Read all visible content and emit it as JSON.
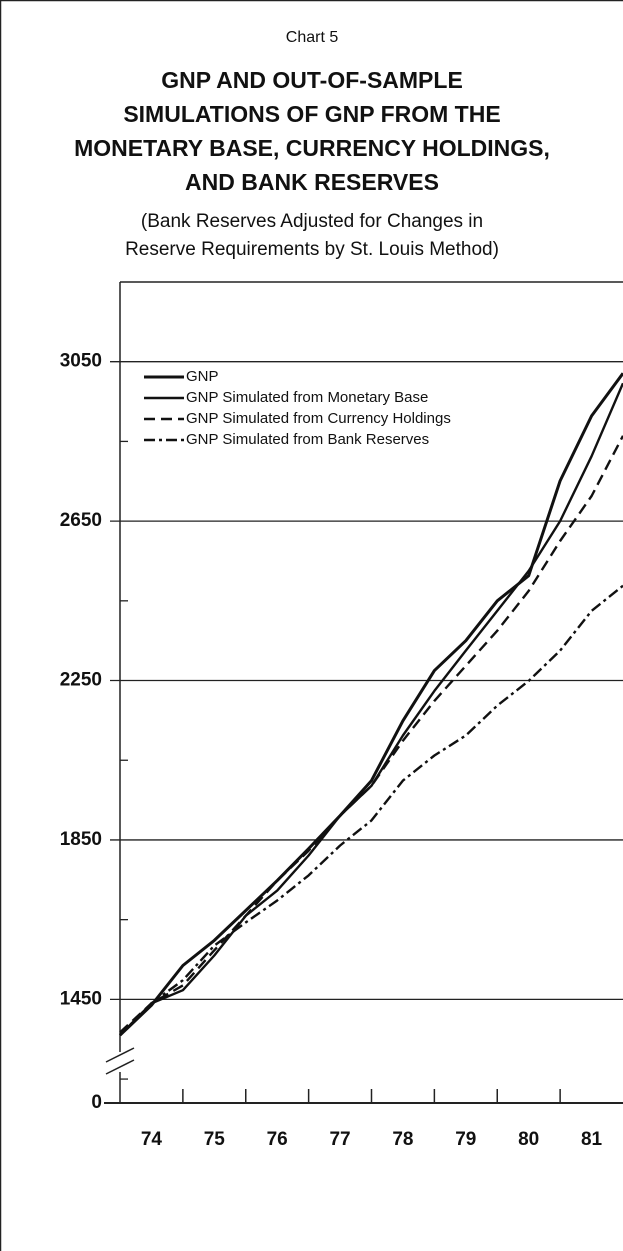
{
  "chart_data": {
    "type": "line",
    "label": "Chart 5",
    "title": [
      "GNP AND OUT-OF-SAMPLE",
      "SIMULATIONS OF GNP FROM THE",
      "MONETARY BASE, CURRENCY HOLDINGS,",
      "AND BANK RESERVES"
    ],
    "subtitle": [
      "(Bank Reserves Adjusted for Changes in",
      "Reserve Requirements by St. Louis Method)"
    ],
    "x": [
      1974.0,
      1974.5,
      1975.0,
      1975.5,
      1976.0,
      1976.5,
      1977.0,
      1977.5,
      1978.0,
      1978.5,
      1979.0,
      1979.5,
      1980.0,
      1980.5,
      1981.0,
      1981.5,
      1982.0
    ],
    "xlim": [
      1974,
      1982
    ],
    "xticks": [
      {
        "value": 1974.5,
        "label": "74"
      },
      {
        "value": 1975.5,
        "label": "75"
      },
      {
        "value": 1976.5,
        "label": "76"
      },
      {
        "value": 1977.5,
        "label": "77"
      },
      {
        "value": 1978.5,
        "label": "78"
      },
      {
        "value": 1979.5,
        "label": "79"
      },
      {
        "value": 1980.5,
        "label": "80"
      },
      {
        "value": 1981.5,
        "label": "81"
      }
    ],
    "minor_xticks": [
      1975,
      1976,
      1977,
      1978,
      1979,
      1980,
      1981
    ],
    "ylim": [
      1200,
      3250
    ],
    "yticks": [
      0,
      1450,
      1850,
      2250,
      2650,
      3050
    ],
    "minor_yticks": [
      1250,
      1650,
      2050,
      2450,
      2850
    ],
    "axis_break": true,
    "grid": true,
    "legend": "upper left",
    "series": [
      {
        "name": "GNP",
        "color": "#111111",
        "style": "solid",
        "values": [
          1360,
          1435,
          1535,
          1598,
          1673,
          1748,
          1828,
          1911,
          1999,
          2149,
          2275,
          2350,
          2450,
          2513,
          2751,
          2914,
          3021
        ]
      },
      {
        "name": "GNP Simulated from Monetary Base",
        "color": "#111111",
        "style": "solid",
        "values": [
          1360,
          1440,
          1473,
          1560,
          1660,
          1723,
          1811,
          1911,
          1986,
          2112,
          2224,
          2325,
          2425,
          2525,
          2650,
          2813,
          2996
        ]
      },
      {
        "name": "GNP Simulated from Currency Holdings",
        "color": "#111111",
        "style": "dashed",
        "values": [
          1367,
          1440,
          1485,
          1573,
          1660,
          1748,
          1823,
          1911,
          1986,
          2099,
          2199,
          2287,
          2375,
          2475,
          2600,
          2713,
          2864
        ]
      },
      {
        "name": "GNP Simulated from Bank Reserves",
        "color": "#111111",
        "style": "dashdot",
        "values": [
          1360,
          1440,
          1498,
          1585,
          1643,
          1698,
          1761,
          1836,
          1899,
          1999,
          2062,
          2112,
          2187,
          2249,
          2325,
          2425,
          2488
        ]
      }
    ]
  }
}
